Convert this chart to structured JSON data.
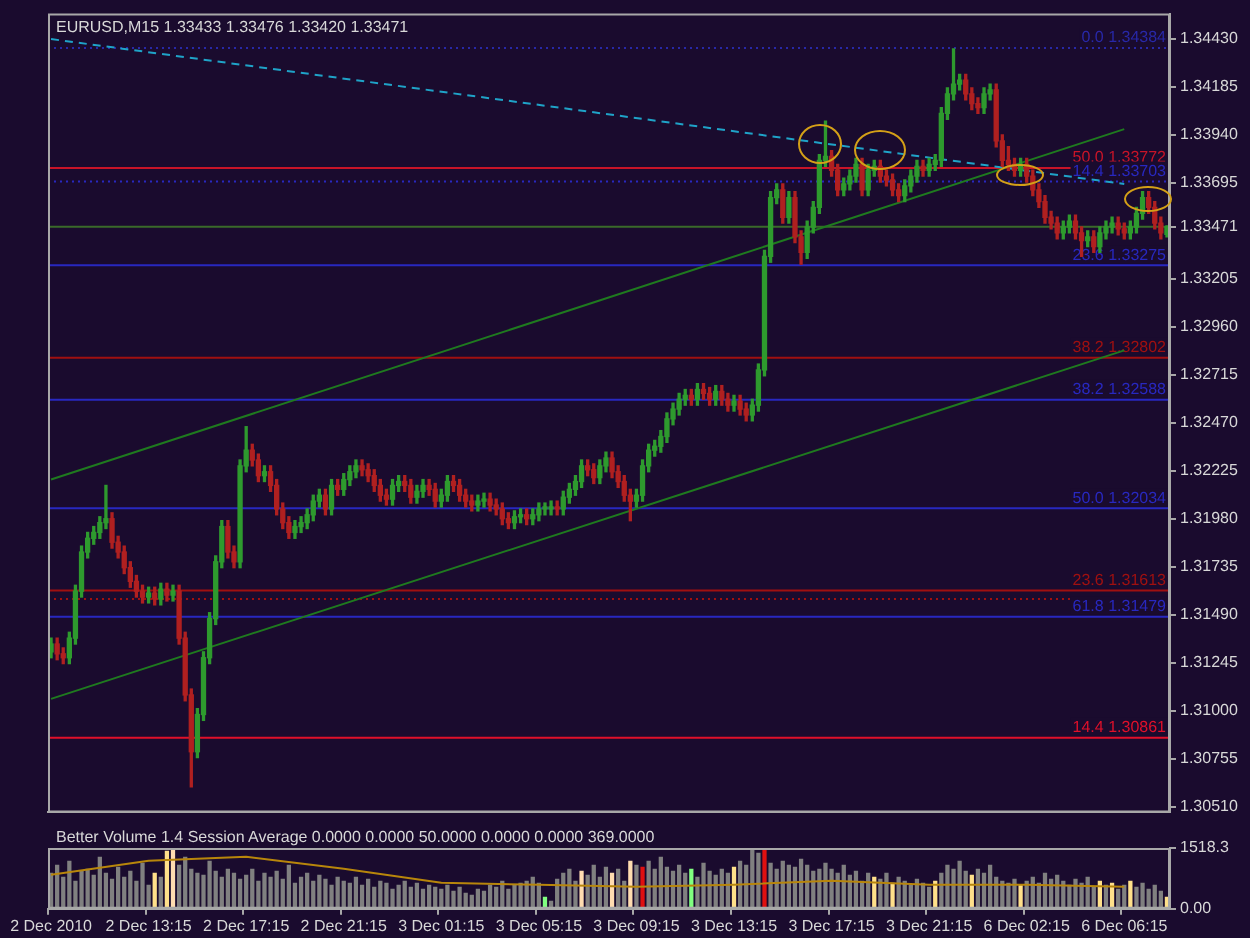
{
  "chart_data": [
    {
      "type": "candlestick",
      "title": "EURUSD,M15 1.33433 1.33476 1.33420 1.33471",
      "categories": [
        "2 Dec 2010",
        null,
        null,
        null,
        null,
        null,
        null,
        null,
        null,
        null,
        null,
        null,
        null,
        null,
        null,
        null,
        "2 Dec 13:15",
        null,
        null,
        null,
        null,
        null,
        null,
        null,
        null,
        null,
        null,
        null,
        null,
        null,
        null,
        null,
        "2 Dec 17:15",
        null,
        null,
        null,
        null,
        null,
        null,
        null,
        null,
        null,
        null,
        null,
        null,
        null,
        null,
        null,
        "2 Dec 21:15",
        null,
        null,
        null,
        null,
        null,
        null,
        null,
        null,
        null,
        null,
        null,
        null,
        null,
        null,
        null,
        "3 Dec 01:15",
        null,
        null,
        null,
        null,
        null,
        null,
        null,
        null,
        null,
        null,
        null,
        null,
        null,
        null,
        null,
        "3 Dec 05:15",
        null,
        null,
        null,
        null,
        null,
        null,
        null,
        null,
        null,
        null,
        null,
        null,
        null,
        null,
        null,
        "3 Dec 09:15",
        null,
        null,
        null,
        null,
        null,
        null,
        null,
        null,
        null,
        null,
        null,
        null,
        null,
        null,
        null,
        "3 Dec 13:15",
        null,
        null,
        null,
        null,
        null,
        null,
        null,
        null,
        null,
        null,
        null,
        null,
        null,
        null,
        null,
        "3 Dec 17:15",
        null,
        null,
        null,
        null,
        null,
        null,
        null,
        null,
        null,
        null,
        null,
        null,
        null,
        null,
        null,
        "3 Dec 21:15",
        null,
        null,
        null,
        null,
        null,
        null,
        null,
        null,
        null,
        null,
        null,
        null,
        null,
        null,
        null,
        "6 Dec 02:15",
        null,
        null,
        null,
        null,
        null,
        null,
        null,
        null,
        null,
        null,
        null,
        null,
        null,
        null,
        null,
        "6 Dec 06:15",
        null,
        null,
        null,
        null,
        null,
        null,
        null
      ],
      "ohlc": [
        [
          1.313,
          1.3137,
          1.3127,
          1.3134
        ],
        [
          1.3134,
          1.3137,
          1.3126,
          1.3129
        ],
        [
          1.3129,
          1.3132,
          1.3124,
          1.3127
        ],
        [
          1.3127,
          1.314,
          1.3124,
          1.3137
        ],
        [
          1.3137,
          1.3164,
          1.3134,
          1.3161
        ],
        [
          1.3161,
          1.3184,
          1.3158,
          1.3181
        ],
        [
          1.3181,
          1.3191,
          1.3178,
          1.3188
        ],
        [
          1.3188,
          1.3194,
          1.3185,
          1.3191
        ],
        [
          1.3191,
          1.3199,
          1.3188,
          1.3196
        ],
        [
          1.3196,
          1.3215,
          1.3193,
          1.3198
        ],
        [
          1.3198,
          1.3201,
          1.3183,
          1.3186
        ],
        [
          1.3186,
          1.3189,
          1.3178,
          1.3181
        ],
        [
          1.3181,
          1.3184,
          1.317,
          1.3173
        ],
        [
          1.3173,
          1.3176,
          1.3163,
          1.3166
        ],
        [
          1.3166,
          1.3169,
          1.3158,
          1.3161
        ],
        [
          1.3161,
          1.3164,
          1.3155,
          1.3158
        ],
        [
          1.3158,
          1.3163,
          1.3155,
          1.316
        ],
        [
          1.316,
          1.3163,
          1.3154,
          1.3157
        ],
        [
          1.3157,
          1.3165,
          1.3154,
          1.3162
        ],
        [
          1.3162,
          1.3165,
          1.3156,
          1.3159
        ],
        [
          1.3159,
          1.3164,
          1.3156,
          1.3161
        ],
        [
          1.3161,
          1.3164,
          1.3134,
          1.3137
        ],
        [
          1.3137,
          1.314,
          1.3105,
          1.3108
        ],
        [
          1.3108,
          1.3111,
          1.3061,
          1.3079
        ],
        [
          1.3079,
          1.3101,
          1.3076,
          1.3098
        ],
        [
          1.3098,
          1.313,
          1.3095,
          1.3127
        ],
        [
          1.3127,
          1.315,
          1.3124,
          1.3147
        ],
        [
          1.3147,
          1.3179,
          1.3144,
          1.3176
        ],
        [
          1.3176,
          1.3197,
          1.3173,
          1.3194
        ],
        [
          1.3194,
          1.3197,
          1.3178,
          1.3181
        ],
        [
          1.3181,
          1.3184,
          1.3173,
          1.3176
        ],
        [
          1.3176,
          1.3228,
          1.3173,
          1.3225
        ],
        [
          1.3225,
          1.3245,
          1.3222,
          1.3233
        ],
        [
          1.3233,
          1.3236,
          1.3225,
          1.3228
        ],
        [
          1.3228,
          1.3231,
          1.3217,
          1.322
        ],
        [
          1.322,
          1.3225,
          1.3217,
          1.3222
        ],
        [
          1.3222,
          1.3225,
          1.3212,
          1.3215
        ],
        [
          1.3215,
          1.3218,
          1.32,
          1.3203
        ],
        [
          1.3203,
          1.3206,
          1.3193,
          1.3196
        ],
        [
          1.3196,
          1.3199,
          1.3188,
          1.3191
        ],
        [
          1.3191,
          1.3197,
          1.3188,
          1.3194
        ],
        [
          1.3194,
          1.3199,
          1.3191,
          1.3196
        ],
        [
          1.3196,
          1.3203,
          1.3193,
          1.32
        ],
        [
          1.32,
          1.321,
          1.3197,
          1.3207
        ],
        [
          1.3207,
          1.3213,
          1.3204,
          1.321
        ],
        [
          1.321,
          1.3213,
          1.32,
          1.3203
        ],
        [
          1.3203,
          1.3218,
          1.32,
          1.3215
        ],
        [
          1.3215,
          1.3218,
          1.321,
          1.3213
        ],
        [
          1.3213,
          1.3221,
          1.321,
          1.3218
        ],
        [
          1.3218,
          1.3225,
          1.3215,
          1.3222
        ],
        [
          1.3222,
          1.3228,
          1.3219,
          1.3225
        ],
        [
          1.3225,
          1.3228,
          1.322,
          1.3223
        ],
        [
          1.3223,
          1.3226,
          1.3217,
          1.322
        ],
        [
          1.322,
          1.3223,
          1.3212,
          1.3215
        ],
        [
          1.3215,
          1.3218,
          1.3207,
          1.321
        ],
        [
          1.321,
          1.3213,
          1.3205,
          1.3208
        ],
        [
          1.3208,
          1.3218,
          1.3205,
          1.3215
        ],
        [
          1.3215,
          1.322,
          1.3212,
          1.3217
        ],
        [
          1.3217,
          1.322,
          1.3212,
          1.3215
        ],
        [
          1.3215,
          1.3218,
          1.3206,
          1.3209
        ],
        [
          1.3209,
          1.3215,
          1.3206,
          1.3212
        ],
        [
          1.3212,
          1.3218,
          1.3209,
          1.3215
        ],
        [
          1.3215,
          1.3218,
          1.321,
          1.3213
        ],
        [
          1.3213,
          1.3216,
          1.3204,
          1.3207
        ],
        [
          1.3207,
          1.3213,
          1.3204,
          1.321
        ],
        [
          1.321,
          1.322,
          1.3207,
          1.3217
        ],
        [
          1.3217,
          1.322,
          1.3212,
          1.3215
        ],
        [
          1.3215,
          1.3218,
          1.3207,
          1.321
        ],
        [
          1.321,
          1.3213,
          1.3204,
          1.3207
        ],
        [
          1.3207,
          1.321,
          1.3202,
          1.3205
        ],
        [
          1.3205,
          1.321,
          1.3202,
          1.3207
        ],
        [
          1.3207,
          1.3211,
          1.3204,
          1.3208
        ],
        [
          1.3208,
          1.3211,
          1.3202,
          1.3205
        ],
        [
          1.3205,
          1.3208,
          1.32,
          1.3203
        ],
        [
          1.3203,
          1.3206,
          1.3195,
          1.3198
        ],
        [
          1.3198,
          1.3201,
          1.3193,
          1.3196
        ],
        [
          1.3196,
          1.3202,
          1.3193,
          1.3199
        ],
        [
          1.3199,
          1.3203,
          1.3196,
          1.32
        ],
        [
          1.32,
          1.3203,
          1.3195,
          1.3198
        ],
        [
          1.3198,
          1.3203,
          1.3195,
          1.32
        ],
        [
          1.32,
          1.3206,
          1.3197,
          1.3203
        ],
        [
          1.3203,
          1.3206,
          1.32,
          1.3203
        ],
        [
          1.3203,
          1.3207,
          1.32,
          1.3204
        ],
        [
          1.3204,
          1.3207,
          1.32,
          1.3203
        ],
        [
          1.3203,
          1.3212,
          1.32,
          1.3209
        ],
        [
          1.3209,
          1.3216,
          1.3206,
          1.3213
        ],
        [
          1.3213,
          1.322,
          1.321,
          1.3217
        ],
        [
          1.3217,
          1.3228,
          1.3214,
          1.3225
        ],
        [
          1.3225,
          1.3228,
          1.322,
          1.3223
        ],
        [
          1.3223,
          1.3226,
          1.3216,
          1.3219
        ],
        [
          1.3219,
          1.3228,
          1.3216,
          1.3225
        ],
        [
          1.3225,
          1.3232,
          1.3222,
          1.3229
        ],
        [
          1.3229,
          1.3232,
          1.3219,
          1.3222
        ],
        [
          1.3222,
          1.3225,
          1.3214,
          1.3217
        ],
        [
          1.3217,
          1.322,
          1.3207,
          1.321
        ],
        [
          1.321,
          1.3213,
          1.3197,
          1.3207
        ],
        [
          1.3207,
          1.3213,
          1.3204,
          1.321
        ],
        [
          1.321,
          1.3228,
          1.3207,
          1.3225
        ],
        [
          1.3225,
          1.3236,
          1.3222,
          1.3233
        ],
        [
          1.3233,
          1.3238,
          1.323,
          1.3235
        ],
        [
          1.3235,
          1.3243,
          1.3232,
          1.324
        ],
        [
          1.324,
          1.3252,
          1.3237,
          1.3249
        ],
        [
          1.3249,
          1.3257,
          1.3246,
          1.3254
        ],
        [
          1.3254,
          1.3262,
          1.3251,
          1.3259
        ],
        [
          1.3259,
          1.3264,
          1.3256,
          1.3261
        ],
        [
          1.3261,
          1.3264,
          1.3256,
          1.3259
        ],
        [
          1.3259,
          1.3267,
          1.3256,
          1.3264
        ],
        [
          1.3264,
          1.3267,
          1.3259,
          1.3262
        ],
        [
          1.3262,
          1.3265,
          1.3256,
          1.3259
        ],
        [
          1.3259,
          1.3266,
          1.3256,
          1.3263
        ],
        [
          1.3263,
          1.3266,
          1.3256,
          1.3259
        ],
        [
          1.3259,
          1.3262,
          1.3253,
          1.3256
        ],
        [
          1.3256,
          1.3261,
          1.3253,
          1.3258
        ],
        [
          1.3258,
          1.3261,
          1.3251,
          1.3254
        ],
        [
          1.3254,
          1.3257,
          1.3248,
          1.3251
        ],
        [
          1.3251,
          1.3259,
          1.3248,
          1.3256
        ],
        [
          1.3256,
          1.3277,
          1.3253,
          1.3274
        ],
        [
          1.3274,
          1.3335,
          1.3271,
          1.3332
        ],
        [
          1.3332,
          1.3365,
          1.3329,
          1.3362
        ],
        [
          1.3362,
          1.3369,
          1.3359,
          1.3366
        ],
        [
          1.3366,
          1.3369,
          1.3349,
          1.3352
        ],
        [
          1.3352,
          1.3365,
          1.3349,
          1.3362
        ],
        [
          1.3362,
          1.3365,
          1.3339,
          1.3342
        ],
        [
          1.3342,
          1.3345,
          1.3328,
          1.3334
        ],
        [
          1.3334,
          1.335,
          1.3331,
          1.3347
        ],
        [
          1.3347,
          1.336,
          1.3344,
          1.3357
        ],
        [
          1.3357,
          1.3384,
          1.3354,
          1.3381
        ],
        [
          1.3381,
          1.3401,
          1.3378,
          1.3383
        ],
        [
          1.3383,
          1.3386,
          1.3373,
          1.3376
        ],
        [
          1.3376,
          1.3379,
          1.3363,
          1.3366
        ],
        [
          1.3366,
          1.3372,
          1.3363,
          1.3369
        ],
        [
          1.3369,
          1.3376,
          1.3366,
          1.3373
        ],
        [
          1.3373,
          1.3382,
          1.337,
          1.3379
        ],
        [
          1.3379,
          1.3382,
          1.3363,
          1.3366
        ],
        [
          1.3366,
          1.3379,
          1.3363,
          1.3376
        ],
        [
          1.3376,
          1.3381,
          1.3373,
          1.3378
        ],
        [
          1.3378,
          1.3381,
          1.337,
          1.3373
        ],
        [
          1.3373,
          1.3376,
          1.3368,
          1.3371
        ],
        [
          1.3371,
          1.3374,
          1.3363,
          1.3366
        ],
        [
          1.3366,
          1.3369,
          1.336,
          1.3363
        ],
        [
          1.3363,
          1.3371,
          1.336,
          1.3368
        ],
        [
          1.3368,
          1.3376,
          1.3365,
          1.3373
        ],
        [
          1.3373,
          1.3381,
          1.337,
          1.3378
        ],
        [
          1.3378,
          1.3381,
          1.3373,
          1.3376
        ],
        [
          1.3376,
          1.3382,
          1.3373,
          1.3379
        ],
        [
          1.3379,
          1.3384,
          1.3376,
          1.3381
        ],
        [
          1.3381,
          1.3408,
          1.3378,
          1.3405
        ],
        [
          1.3405,
          1.3418,
          1.3402,
          1.3415
        ],
        [
          1.3415,
          1.3438,
          1.3412,
          1.342
        ],
        [
          1.342,
          1.3425,
          1.3417,
          1.3422
        ],
        [
          1.3422,
          1.3425,
          1.3412,
          1.3415
        ],
        [
          1.3415,
          1.3418,
          1.3407,
          1.341
        ],
        [
          1.341,
          1.3413,
          1.3405,
          1.3408
        ],
        [
          1.3408,
          1.3418,
          1.3405,
          1.3415
        ],
        [
          1.3415,
          1.342,
          1.3412,
          1.3417
        ],
        [
          1.3417,
          1.342,
          1.3388,
          1.3391
        ],
        [
          1.3391,
          1.3394,
          1.3378,
          1.3381
        ],
        [
          1.3381,
          1.3388,
          1.3376,
          1.3379
        ],
        [
          1.3379,
          1.3382,
          1.3373,
          1.3376
        ],
        [
          1.3376,
          1.3382,
          1.3373,
          1.3379
        ],
        [
          1.3379,
          1.3382,
          1.337,
          1.3373
        ],
        [
          1.3373,
          1.3376,
          1.3363,
          1.3366
        ],
        [
          1.3366,
          1.3369,
          1.3357,
          1.336
        ],
        [
          1.336,
          1.3363,
          1.3349,
          1.3352
        ],
        [
          1.3352,
          1.3355,
          1.3346,
          1.3349
        ],
        [
          1.3349,
          1.3352,
          1.3341,
          1.3344
        ],
        [
          1.3344,
          1.335,
          1.3341,
          1.3347
        ],
        [
          1.3347,
          1.3353,
          1.3344,
          1.335
        ],
        [
          1.335,
          1.3353,
          1.3341,
          1.3344
        ],
        [
          1.3344,
          1.3347,
          1.3332,
          1.334
        ],
        [
          1.334,
          1.3345,
          1.3337,
          1.3342
        ],
        [
          1.3342,
          1.3345,
          1.3334,
          1.3337
        ],
        [
          1.3337,
          1.3347,
          1.3334,
          1.3344
        ],
        [
          1.3344,
          1.335,
          1.3341,
          1.3347
        ],
        [
          1.3347,
          1.3352,
          1.3344,
          1.3349
        ],
        [
          1.3349,
          1.3352,
          1.3343,
          1.3346
        ],
        [
          1.3346,
          1.3349,
          1.3341,
          1.3344
        ],
        [
          1.3344,
          1.335,
          1.3341,
          1.3347
        ],
        [
          1.3347,
          1.3357,
          1.3344,
          1.3354
        ],
        [
          1.3354,
          1.3365,
          1.3351,
          1.3362
        ],
        [
          1.3362,
          1.3365,
          1.3354,
          1.3357
        ],
        [
          1.3357,
          1.336,
          1.3346,
          1.3349
        ],
        [
          1.3349,
          1.3352,
          1.3341,
          1.3344
        ],
        [
          1.33433,
          1.33476,
          1.3342,
          1.33471
        ]
      ],
      "series": [
        {
          "type": "line",
          "x": [
            "2 Dec 2010",
            "6 Dec 06:15"
          ],
          "values": [
            1.3443,
            1.3369
          ],
          "color": "#1fa3c8",
          "line_style": "dashed"
        },
        {
          "type": "line",
          "x": [
            "2 Dec 2010",
            "6 Dec 06:15"
          ],
          "values": [
            1.3218,
            1.3397
          ],
          "color": "#1f7a1f"
        },
        {
          "type": "line",
          "x": [
            "2 Dec 2010",
            "6 Dec 06:15"
          ],
          "values": [
            1.3106,
            1.3284
          ],
          "color": "#1f7a1f"
        }
      ],
      "marker": "none",
      "ylim": [
        1.3048,
        1.3456
      ],
      "yticks": [
        {
          "value": 1.3443,
          "label": "1.34430"
        },
        1.34185,
        {
          "value": 1.3394,
          "label": "1.33940"
        },
        1.33695,
        1.33471,
        1.33205,
        {
          "value": 1.3296,
          "label": "1.32960"
        },
        1.32715,
        {
          "value": 1.3247,
          "label": "1.32470"
        },
        1.32225,
        {
          "value": 1.3198,
          "label": "1.31980"
        },
        1.31735,
        {
          "value": 1.3149,
          "label": "1.31490"
        },
        1.31245,
        {
          "value": 1.31,
          "label": "1.31000"
        },
        1.30755,
        {
          "value": 1.3051,
          "label": "1.30510"
        }
      ],
      "ref_lines": [
        {
          "axis": "y",
          "value": 1.34384,
          "label": "0.0 1.34384",
          "color": "#2828a8",
          "line_style": "dotted"
        },
        {
          "axis": "y",
          "value": 1.33772,
          "label": "50.0 1.33772",
          "color": "#c81428",
          "line_style": "solid"
        },
        {
          "axis": "y",
          "value": 1.33703,
          "label": "14.4 1.33703",
          "color": "#2828c0",
          "line_style": "dotted"
        },
        {
          "axis": "y",
          "value": 1.33471,
          "color": "#3a6a2a",
          "line_style": "solid"
        },
        {
          "axis": "y",
          "value": 1.33275,
          "label": "23.6 1.33275",
          "color": "#2828c0",
          "line_style": "solid"
        },
        {
          "axis": "y",
          "value": 1.32802,
          "label": "38.2 1.32802",
          "color": "#a01010",
          "line_style": "solid"
        },
        {
          "axis": "y",
          "value": 1.32588,
          "label": "38.2 1.32588",
          "color": "#2828c0",
          "line_style": "solid"
        },
        {
          "axis": "y",
          "value": 1.32034,
          "label": "50.0 1.32034",
          "color": "#2828c0",
          "line_style": "solid"
        },
        {
          "axis": "y",
          "value": 1.31613,
          "label": "23.6 1.31613",
          "color": "#a01010",
          "line_style": "solid"
        },
        {
          "axis": "y",
          "value": 1.3157,
          "color": "#a01010",
          "line_style": "dotted"
        },
        {
          "axis": "y",
          "value": 1.31479,
          "label": "61.8 1.31479",
          "color": "#2828c0",
          "line_style": "solid"
        },
        {
          "axis": "y",
          "value": 1.30861,
          "label": "14.4 1.30861",
          "color": "#e0102a",
          "line_style": "solid"
        }
      ],
      "tick_labels": "y",
      "legend": false,
      "grid": false
    },
    {
      "type": "bar",
      "title": "Better Volume 1.4 Session Average 0.0000 0.0000 50.0000 0.0000 0.0000 369.0000",
      "categories": [
        "2 Dec 2010",
        null,
        null,
        null,
        null,
        null,
        null,
        null,
        null,
        null,
        null,
        null,
        null,
        null,
        null,
        null,
        "2 Dec 13:15",
        null,
        null,
        null,
        null,
        null,
        null,
        null,
        null,
        null,
        null,
        null,
        null,
        null,
        null,
        null,
        "2 Dec 17:15",
        null,
        null,
        null,
        null,
        null,
        null,
        null,
        null,
        null,
        null,
        null,
        null,
        null,
        null,
        null,
        "2 Dec 21:15",
        null,
        null,
        null,
        null,
        null,
        null,
        null,
        null,
        null,
        null,
        null,
        null,
        null,
        null,
        null,
        "3 Dec 01:15",
        null,
        null,
        null,
        null,
        null,
        null,
        null,
        null,
        null,
        null,
        null,
        null,
        null,
        null,
        null,
        "3 Dec 05:15",
        null,
        null,
        null,
        null,
        null,
        null,
        null,
        null,
        null,
        null,
        null,
        null,
        null,
        null,
        null,
        "3 Dec 09:15",
        null,
        null,
        null,
        null,
        null,
        null,
        null,
        null,
        null,
        null,
        null,
        null,
        null,
        null,
        null,
        "3 Dec 13:15",
        null,
        null,
        null,
        null,
        null,
        null,
        null,
        null,
        null,
        null,
        null,
        null,
        null,
        null,
        null,
        "3 Dec 17:15",
        null,
        null,
        null,
        null,
        null,
        null,
        null,
        null,
        null,
        null,
        null,
        null,
        null,
        null,
        null,
        "3 Dec 21:15",
        null,
        null,
        null,
        null,
        null,
        null,
        null,
        null,
        null,
        null,
        null,
        null,
        null,
        null,
        null,
        "6 Dec 02:15",
        null,
        null,
        null,
        null,
        null,
        null,
        null,
        null,
        null,
        null,
        null,
        null,
        null,
        null,
        null,
        "6 Dec 06:15",
        null,
        null,
        null,
        null,
        null,
        null,
        null
      ],
      "series": [
        {
          "type": "bar",
          "values": [
            900,
            1100,
            800,
            1200,
            700,
            950,
            1000,
            850,
            1300,
            900,
            750,
            1050,
            800,
            950,
            700,
            1150,
            600,
            900,
            800,
            1450,
            1510,
            1100,
            1300,
            1000,
            900,
            850,
            1200,
            950,
            800,
            1000,
            900,
            750,
            850,
            1000,
            700,
            900,
            800,
            950,
            750,
            1100,
            650,
            800,
            900,
            700,
            850,
            750,
            600,
            800,
            700,
            650,
            800,
            600,
            750,
            550,
            700,
            650,
            500,
            600,
            700,
            550,
            650,
            500,
            600,
            550,
            500,
            600,
            450,
            550,
            400,
            350,
            500,
            450,
            600,
            550,
            700,
            500,
            600,
            650,
            700,
            800,
            650,
            300,
            200,
            750,
            900,
            1000,
            700,
            950,
            850,
            1100,
            800,
            1050,
            900,
            1000,
            700,
            1200,
            1100,
            1050,
            1200,
            1000,
            1300,
            1050,
            950,
            1100,
            900,
            1000,
            800,
            1150,
            950,
            850,
            1000,
            900,
            1050,
            1200,
            1100,
            1500,
            1400,
            1500,
            1150,
            1000,
            1200,
            1100,
            1050,
            1250,
            1100,
            950,
            1000,
            1150,
            1000,
            900,
            1100,
            850,
            950,
            700,
            900,
            800,
            750,
            900,
            650,
            800,
            700,
            600,
            750,
            650,
            550,
            700,
            900,
            1100,
            1000,
            1200,
            950,
            850,
            1000,
            900,
            1100,
            800,
            700,
            650,
            750,
            600,
            700,
            800,
            650,
            900,
            750,
            850,
            700,
            600,
            750,
            650,
            800,
            550,
            700,
            600,
            650,
            500,
            600,
            700,
            550,
            650,
            500,
            600,
            450,
            300
          ],
          "colors": [
            "#808080",
            "#808080",
            "#808080",
            "#808080",
            "#808080",
            "#808080",
            "#808080",
            "#808080",
            "#808080",
            "#808080",
            "#808080",
            "#808080",
            "#808080",
            "#808080",
            "#808080",
            "#808080",
            "#808080",
            "#ffe08a",
            "#808080",
            "#ffe08a",
            "#ffdcb0",
            "#808080",
            "#808080",
            "#808080",
            "#808080",
            "#808080",
            "#808080",
            "#808080",
            "#808080",
            "#808080",
            "#808080",
            "#808080",
            "#808080",
            "#808080",
            "#808080",
            "#808080",
            "#808080",
            "#808080",
            "#808080",
            "#808080",
            "#808080",
            "#808080",
            "#808080",
            "#808080",
            "#808080",
            "#808080",
            "#808080",
            "#808080",
            "#808080",
            "#808080",
            "#808080",
            "#808080",
            "#808080",
            "#808080",
            "#808080",
            "#808080",
            "#808080",
            "#808080",
            "#808080",
            "#808080",
            "#808080",
            "#808080",
            "#808080",
            "#808080",
            "#808080",
            "#808080",
            "#808080",
            "#808080",
            "#808080",
            "#808080",
            "#808080",
            "#808080",
            "#808080",
            "#808080",
            "#808080",
            "#808080",
            "#808080",
            "#808080",
            "#808080",
            "#808080",
            "#808080",
            "#80ff80",
            "#808080",
            "#808080",
            "#808080",
            "#808080",
            "#808080",
            "#ffdcb0",
            "#808080",
            "#808080",
            "#808080",
            "#808080",
            "#ffdcb0",
            "#808080",
            "#808080",
            "#ffdcb0",
            "#808080",
            "#e01010",
            "#808080",
            "#808080",
            "#808080",
            "#808080",
            "#808080",
            "#808080",
            "#808080",
            "#80ff80",
            "#808080",
            "#808080",
            "#808080",
            "#808080",
            "#808080",
            "#808080",
            "#ffe08a",
            "#808080",
            "#808080",
            "#808080",
            "#808080",
            "#e01010",
            "#808080",
            "#808080",
            "#808080",
            "#808080",
            "#808080",
            "#808080",
            "#808080",
            "#808080",
            "#808080",
            "#808080",
            "#808080",
            "#808080",
            "#808080",
            "#808080",
            "#808080",
            "#808080",
            "#808080",
            "#ffe08a",
            "#808080",
            "#808080",
            "#ffe08a",
            "#808080",
            "#808080",
            "#808080",
            "#808080",
            "#808080",
            "#808080",
            "#ffe08a",
            "#808080",
            "#808080",
            "#808080",
            "#808080",
            "#808080",
            "#ffe08a",
            "#808080",
            "#808080",
            "#808080",
            "#808080",
            "#808080",
            "#808080",
            "#808080",
            "#ffe08a",
            "#808080",
            "#808080",
            "#808080",
            "#808080",
            "#808080",
            "#808080",
            "#808080",
            "#808080",
            "#808080",
            "#808080",
            "#808080",
            "#808080",
            "#ffe08a",
            "#808080",
            "#ffe08a",
            "#808080",
            "#808080",
            "#ffe08a",
            "#808080",
            "#808080",
            "#808080",
            "#808080",
            "#808080",
            "#ffe08a"
          ]
        },
        {
          "type": "line",
          "x": [
            "2 Dec 2010",
            "2 Dec 13:15",
            "2 Dec 17:15",
            "2 Dec 21:15",
            "3 Dec 01:15",
            "3 Dec 05:15",
            "3 Dec 09:15",
            "3 Dec 13:15",
            "3 Dec 17:15",
            "3 Dec 21:15",
            "6 Dec 02:15",
            "6 Dec 06:15"
          ],
          "values": [
            850,
            1200,
            1300,
            1000,
            650,
            600,
            550,
            600,
            700,
            600,
            600,
            550
          ],
          "color": "#b8860b"
        }
      ],
      "marker": "none",
      "ylim": [
        0,
        1518.3
      ],
      "yticks": [
        {
          "value": 0,
          "label": "0.00"
        },
        1518.3
      ],
      "legend": false,
      "grid": false
    }
  ]
}
